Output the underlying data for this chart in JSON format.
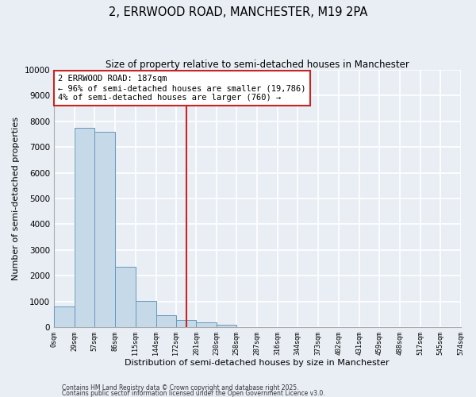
{
  "title": "2, ERRWOOD ROAD, MANCHESTER, M19 2PA",
  "subtitle": "Size of property relative to semi-detached houses in Manchester",
  "bar_color": "#c6d9e8",
  "bar_edge_color": "#6699bb",
  "vline_x": 187,
  "vline_color": "#cc2222",
  "annotation_title": "2 ERRWOOD ROAD: 187sqm",
  "annotation_line1": "← 96% of semi-detached houses are smaller (19,786)",
  "annotation_line2": "4% of semi-detached houses are larger (760) →",
  "annotation_box_color": "#ffffff",
  "annotation_box_edge": "#cc2222",
  "xlabel": "Distribution of semi-detached houses by size in Manchester",
  "ylabel": "Number of semi-detached properties",
  "footer1": "Contains HM Land Registry data © Crown copyright and database right 2025.",
  "footer2": "Contains public sector information licensed under the Open Government Licence v3.0.",
  "bin_edges": [
    0,
    29,
    57,
    86,
    115,
    144,
    172,
    201,
    230,
    258,
    287,
    316,
    344,
    373,
    402,
    431,
    459,
    488,
    517,
    545,
    574
  ],
  "bin_counts": [
    820,
    7750,
    7600,
    2350,
    1020,
    460,
    270,
    200,
    100,
    0,
    0,
    0,
    0,
    0,
    0,
    0,
    0,
    0,
    0,
    0
  ],
  "ylim": [
    0,
    10000
  ],
  "yticks": [
    0,
    1000,
    2000,
    3000,
    4000,
    5000,
    6000,
    7000,
    8000,
    9000,
    10000
  ],
  "tick_labels": [
    "0sqm",
    "29sqm",
    "57sqm",
    "86sqm",
    "115sqm",
    "144sqm",
    "172sqm",
    "201sqm",
    "230sqm",
    "258sqm",
    "287sqm",
    "316sqm",
    "344sqm",
    "373sqm",
    "402sqm",
    "431sqm",
    "459sqm",
    "488sqm",
    "517sqm",
    "545sqm",
    "574sqm"
  ],
  "background_color": "#e8eef4",
  "grid_color": "#ffffff",
  "figsize": [
    6.0,
    5.0
  ],
  "dpi": 100
}
